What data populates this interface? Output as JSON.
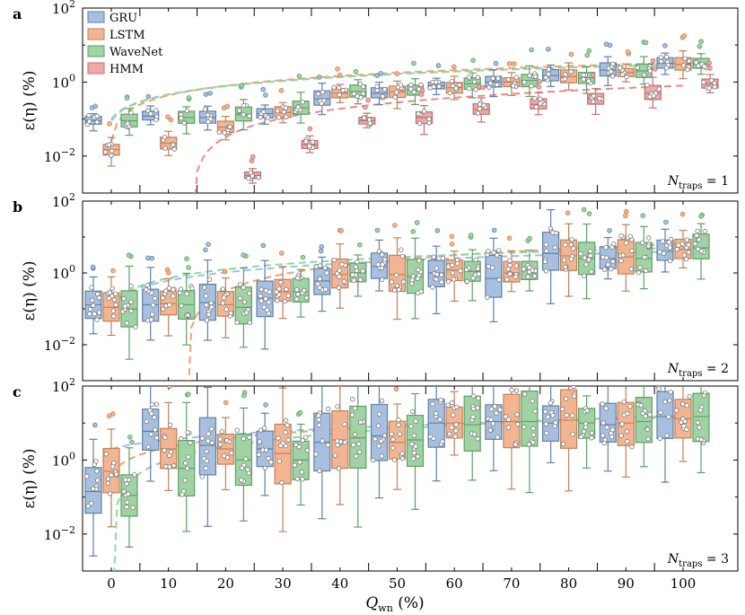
{
  "chart_data": {
    "type": "box",
    "xlabel": "Q_wn (%)",
    "xlabel_main": "Q",
    "xlabel_sub": "wn",
    "xlabel_unit": "(%)",
    "ylabel": "ε(η) (%)",
    "yscale": "log",
    "ylim": [
      0.001,
      100
    ],
    "categories": [
      "0",
      "10",
      "20",
      "30",
      "40",
      "50",
      "60",
      "70",
      "80",
      "90",
      "100"
    ],
    "legend": [
      {
        "name": "GRU",
        "color": "#a8c0e0",
        "edge": "#5f7fa8"
      },
      {
        "name": "LSTM",
        "color": "#f3b591",
        "edge": "#c0805a"
      },
      {
        "name": "WaveNet",
        "color": "#9fd3a4",
        "edge": "#5e9f66"
      },
      {
        "name": "HMM",
        "color": "#f0a8a8",
        "edge": "#c07070"
      }
    ],
    "panels": [
      {
        "label": "a",
        "annotation_main": "N",
        "annotation_sub": "traps",
        "annotation_value": "= 1",
        "series": [
          {
            "name": "GRU",
            "medians": [
              0.09,
              0.12,
              0.11,
              0.14,
              0.35,
              0.5,
              0.8,
              1.0,
              1.5,
              2.1,
              3.2
            ]
          },
          {
            "name": "LSTM",
            "medians": [
              0.015,
              0.022,
              0.06,
              0.15,
              0.5,
              0.55,
              0.7,
              1.0,
              1.4,
              1.8,
              3.0
            ]
          },
          {
            "name": "WaveNet",
            "medians": [
              0.09,
              0.11,
              0.13,
              0.2,
              0.55,
              0.6,
              0.9,
              1.1,
              1.3,
              2.0,
              3.1
            ]
          },
          {
            "name": "HMM",
            "medians": [
              null,
              null,
              0.003,
              0.02,
              0.09,
              0.11,
              0.18,
              0.25,
              0.35,
              0.5,
              0.9
            ]
          }
        ],
        "fits": [
          {
            "name": "GRU",
            "y_at_0": 0.1,
            "y_at_100": 3.0
          },
          {
            "name": "LSTM",
            "y_at_0": 0.025,
            "y_at_100": 3.3
          },
          {
            "name": "WaveNet",
            "y_at_0": 0.09,
            "y_at_100": 3.0
          },
          {
            "name": "HMM",
            "y_at_0": 0.001,
            "y_at_100": 0.8
          }
        ]
      },
      {
        "label": "b",
        "annotation_main": "N",
        "annotation_sub": "traps",
        "annotation_value": "= 2",
        "series": [
          {
            "name": "GRU",
            "medians": [
              0.13,
              0.13,
              0.15,
              0.2,
              0.6,
              1.5,
              1.0,
              0.7,
              3.5,
              2.5,
              4.0
            ]
          },
          {
            "name": "LSTM",
            "medians": [
              0.11,
              0.14,
              0.13,
              0.3,
              0.9,
              0.9,
              1.2,
              1.0,
              3.0,
              2.8,
              4.5
            ]
          },
          {
            "name": "WaveNet",
            "medians": [
              0.1,
              0.13,
              0.11,
              0.3,
              1.0,
              0.8,
              1.1,
              1.2,
              2.5,
              2.5,
              5.0
            ]
          }
        ],
        "fits": [
          {
            "name": "GRU",
            "y_at_0": 0.12,
            "y_at_100": 4.0
          },
          {
            "name": "LSTM",
            "y_at_0": 0.001,
            "y_at_100": 6.5
          },
          {
            "name": "WaveNet",
            "y_at_0": 0.1,
            "y_at_100": 5.0
          }
        ]
      },
      {
        "label": "c",
        "annotation_main": "N",
        "annotation_sub": "traps",
        "annotation_value": "= 3",
        "series": [
          {
            "name": "GRU",
            "medians": [
              0.14,
              6.0,
              2.5,
              2.0,
              3.0,
              4.5,
              10.0,
              11.0,
              10.0,
              9.0,
              15.0
            ]
          },
          {
            "name": "LSTM",
            "medians": [
              0.5,
              2.0,
              2.0,
              1.5,
              3.5,
              3.0,
              10.0,
              11.0,
              12.0,
              10.0,
              13.0
            ]
          },
          {
            "name": "WaveNet",
            "medians": [
              0.11,
              0.6,
              1.0,
              1.0,
              4.0,
              3.5,
              9.0,
              11.0,
              10.0,
              11.0,
              15.0
            ]
          }
        ],
        "fits": [
          {
            "name": "GRU",
            "y_at_0": 2.0,
            "y_at_100": 14.0
          },
          {
            "name": "LSTM",
            "y_at_0": 0.4,
            "y_at_100": 15.0
          },
          {
            "name": "WaveNet",
            "y_at_0": 0.001,
            "y_at_100": 16.0
          }
        ]
      }
    ],
    "ytick_labels": [
      {
        "base": "10",
        "exp": "2"
      },
      {
        "base": "10",
        "exp": "0"
      },
      {
        "base": "10",
        "exp": "−2"
      }
    ]
  }
}
